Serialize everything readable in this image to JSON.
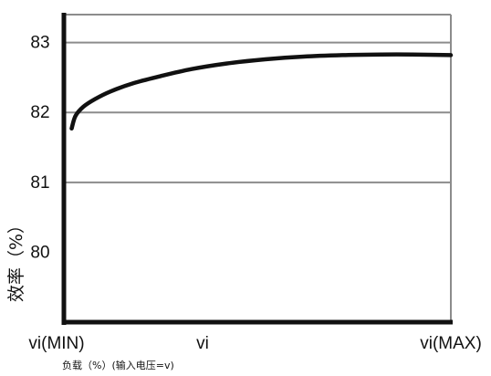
{
  "chart_data": {
    "type": "line",
    "title": "",
    "xlabel": "负载（%）(输入电压=v)",
    "ylabel": "效率（%）",
    "x_ticks": [
      "vi(MIN)",
      "vi",
      "vi(MAX)"
    ],
    "y_ticks": [
      80,
      81,
      82,
      83
    ],
    "gridlines_y": [
      81,
      82,
      83
    ],
    "grid": true,
    "legend": "none",
    "x_range": [
      0,
      1
    ],
    "ylim": [
      79,
      83.4
    ],
    "series": [
      {
        "color": "#111111",
        "points": [
          [
            0.02,
            81.77
          ],
          [
            0.03,
            81.95
          ],
          [
            0.05,
            82.08
          ],
          [
            0.08,
            82.19
          ],
          [
            0.12,
            82.3
          ],
          [
            0.18,
            82.42
          ],
          [
            0.25,
            82.52
          ],
          [
            0.33,
            82.62
          ],
          [
            0.42,
            82.7
          ],
          [
            0.52,
            82.76
          ],
          [
            0.62,
            82.8
          ],
          [
            0.72,
            82.82
          ],
          [
            0.82,
            82.83
          ],
          [
            0.9,
            82.83
          ],
          [
            1.0,
            82.82
          ]
        ]
      }
    ]
  }
}
